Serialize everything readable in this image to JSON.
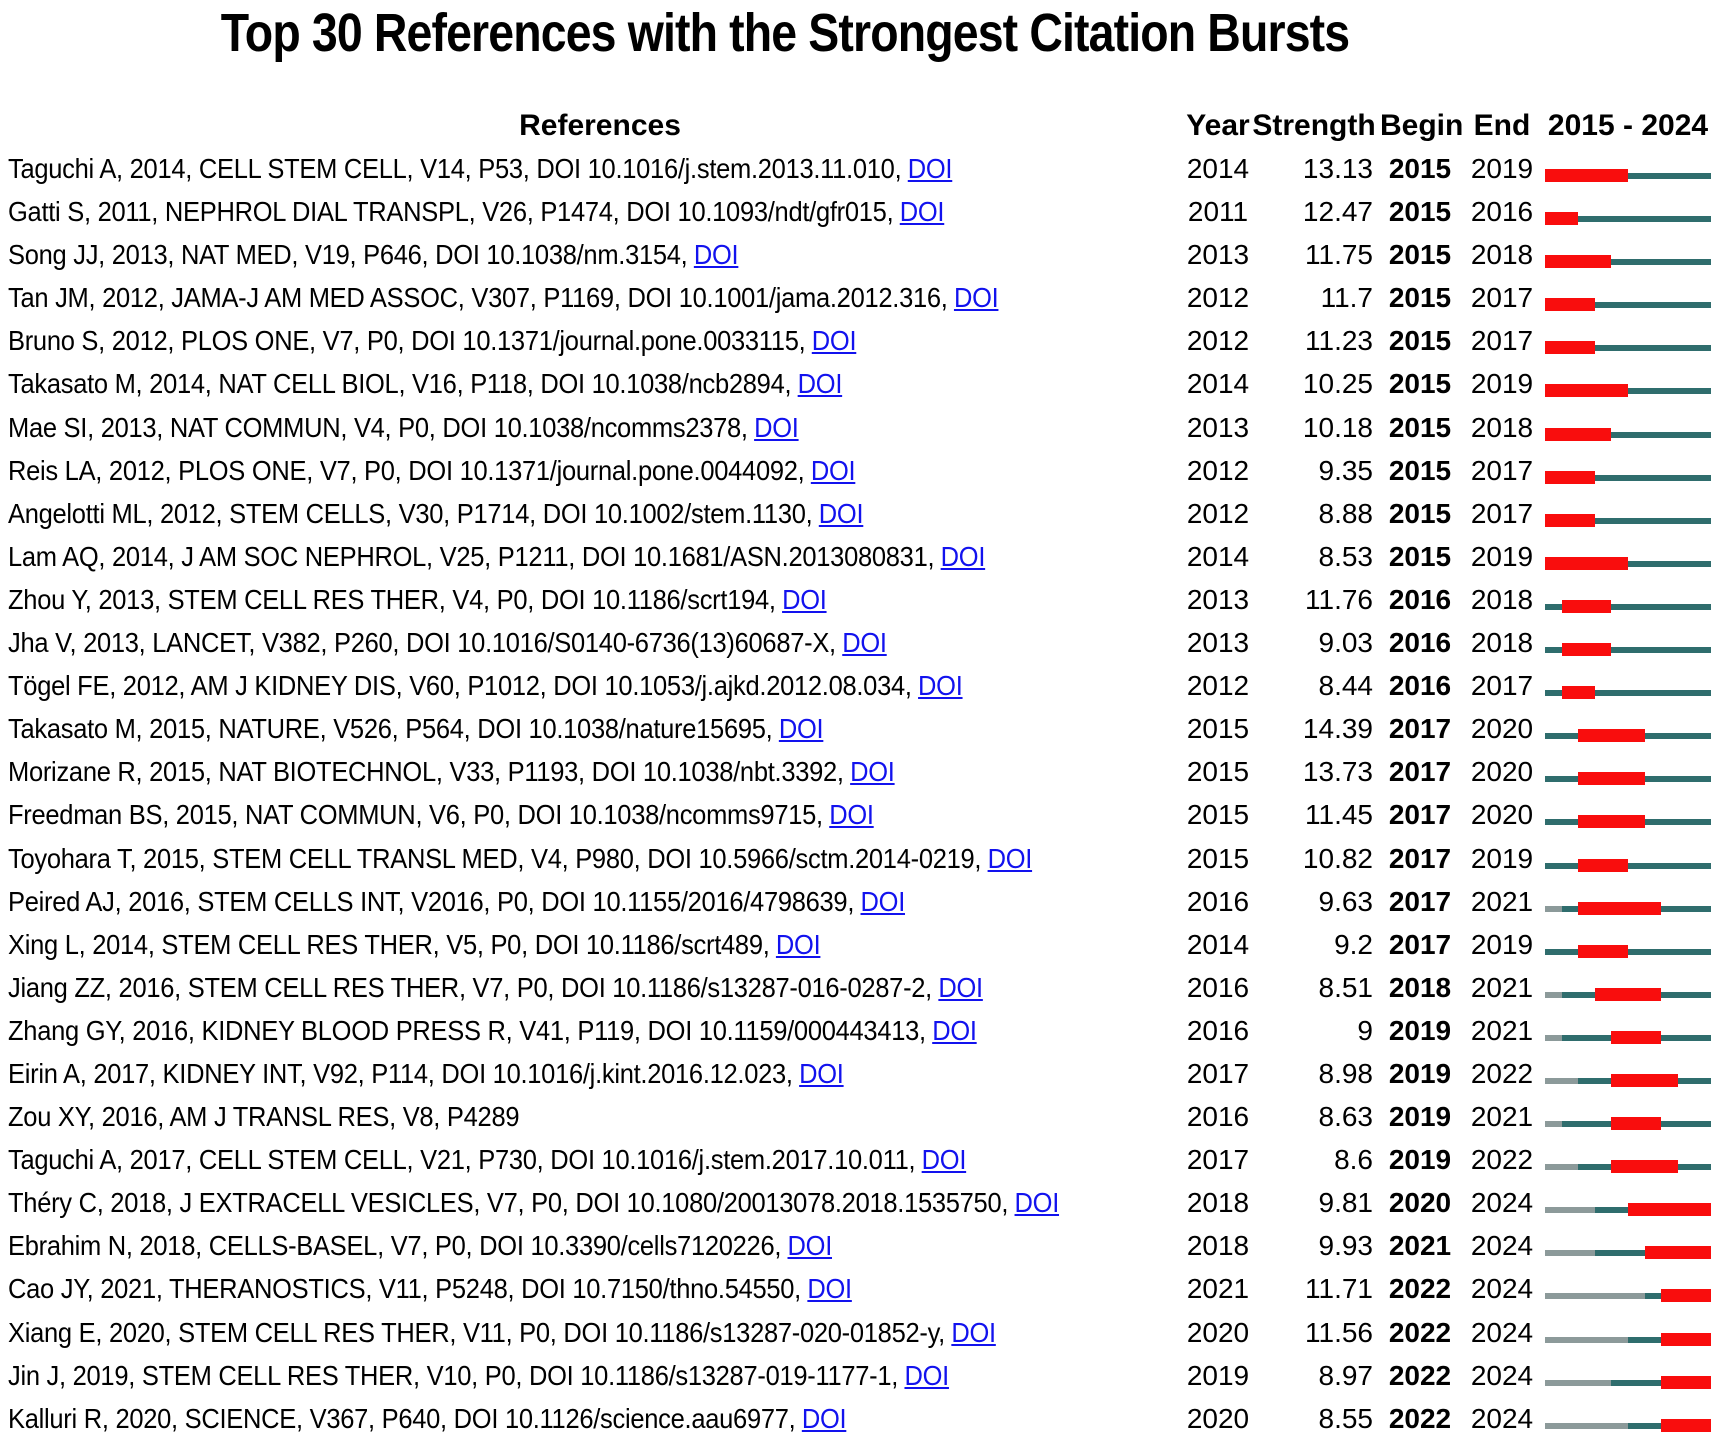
{
  "chart_data": {
    "type": "table",
    "title": "Top 30 References with the Strongest Citation Bursts",
    "headers": {
      "references": "References",
      "year": "Year",
      "strength": "Strength",
      "begin": "Begin",
      "end": "End",
      "timeline": "2015 - 2024"
    },
    "doi_label": "DOI",
    "timeline_start": 2015,
    "timeline_end": 2024,
    "colors": {
      "burst_bar": "#F90D0D",
      "post_publication_line": "#2F6D6D",
      "pre_publication_line": "#8C9A9A",
      "doi_link": "#1212EE",
      "text": "#000000"
    },
    "rows": [
      {
        "reference": "Taguchi A, 2014, CELL STEM CELL, V14, P53, DOI 10.1016/j.stem.2013.11.010,",
        "doi": true,
        "year": 2014,
        "strength": "13.13",
        "begin": 2015,
        "end": 2019
      },
      {
        "reference": "Gatti S, 2011, NEPHROL DIAL TRANSPL, V26, P1474, DOI 10.1093/ndt/gfr015,",
        "doi": true,
        "year": 2011,
        "strength": "12.47",
        "begin": 2015,
        "end": 2016
      },
      {
        "reference": "Song JJ, 2013, NAT MED, V19, P646, DOI 10.1038/nm.3154,",
        "doi": true,
        "year": 2013,
        "strength": "11.75",
        "begin": 2015,
        "end": 2018
      },
      {
        "reference": "Tan JM, 2012, JAMA-J AM MED ASSOC, V307, P1169, DOI 10.1001/jama.2012.316,",
        "doi": true,
        "year": 2012,
        "strength": "11.7",
        "begin": 2015,
        "end": 2017
      },
      {
        "reference": "Bruno S, 2012, PLOS ONE, V7, P0, DOI 10.1371/journal.pone.0033115,",
        "doi": true,
        "year": 2012,
        "strength": "11.23",
        "begin": 2015,
        "end": 2017
      },
      {
        "reference": "Takasato M, 2014, NAT CELL BIOL, V16, P118, DOI 10.1038/ncb2894,",
        "doi": true,
        "year": 2014,
        "strength": "10.25",
        "begin": 2015,
        "end": 2019
      },
      {
        "reference": "Mae SI, 2013, NAT COMMUN, V4, P0, DOI 10.1038/ncomms2378,",
        "doi": true,
        "year": 2013,
        "strength": "10.18",
        "begin": 2015,
        "end": 2018
      },
      {
        "reference": "Reis LA, 2012, PLOS ONE, V7, P0, DOI 10.1371/journal.pone.0044092,",
        "doi": true,
        "year": 2012,
        "strength": "9.35",
        "begin": 2015,
        "end": 2017
      },
      {
        "reference": "Angelotti ML, 2012, STEM CELLS, V30, P1714, DOI 10.1002/stem.1130,",
        "doi": true,
        "year": 2012,
        "strength": "8.88",
        "begin": 2015,
        "end": 2017
      },
      {
        "reference": "Lam AQ, 2014, J AM SOC NEPHROL, V25, P1211, DOI 10.1681/ASN.2013080831,",
        "doi": true,
        "year": 2014,
        "strength": "8.53",
        "begin": 2015,
        "end": 2019
      },
      {
        "reference": "Zhou Y, 2013, STEM CELL RES THER, V4, P0, DOI 10.1186/scrt194,",
        "doi": true,
        "year": 2013,
        "strength": "11.76",
        "begin": 2016,
        "end": 2018
      },
      {
        "reference": "Jha V, 2013, LANCET, V382, P260, DOI 10.1016/S0140-6736(13)60687-X,",
        "doi": true,
        "year": 2013,
        "strength": "9.03",
        "begin": 2016,
        "end": 2018
      },
      {
        "reference": "Tögel FE, 2012, AM J KIDNEY DIS, V60, P1012, DOI 10.1053/j.ajkd.2012.08.034,",
        "doi": true,
        "year": 2012,
        "strength": "8.44",
        "begin": 2016,
        "end": 2017
      },
      {
        "reference": "Takasato M, 2015, NATURE, V526, P564, DOI 10.1038/nature15695,",
        "doi": true,
        "year": 2015,
        "strength": "14.39",
        "begin": 2017,
        "end": 2020
      },
      {
        "reference": "Morizane R, 2015, NAT BIOTECHNOL, V33, P1193, DOI 10.1038/nbt.3392,",
        "doi": true,
        "year": 2015,
        "strength": "13.73",
        "begin": 2017,
        "end": 2020
      },
      {
        "reference": "Freedman BS, 2015, NAT COMMUN, V6, P0, DOI 10.1038/ncomms9715,",
        "doi": true,
        "year": 2015,
        "strength": "11.45",
        "begin": 2017,
        "end": 2020
      },
      {
        "reference": "Toyohara T, 2015, STEM CELL TRANSL MED, V4, P980, DOI 10.5966/sctm.2014-0219,",
        "doi": true,
        "year": 2015,
        "strength": "10.82",
        "begin": 2017,
        "end": 2019
      },
      {
        "reference": "Peired AJ, 2016, STEM CELLS INT, V2016, P0, DOI 10.1155/2016/4798639,",
        "doi": true,
        "year": 2016,
        "strength": "9.63",
        "begin": 2017,
        "end": 2021
      },
      {
        "reference": "Xing L, 2014, STEM CELL RES THER, V5, P0, DOI 10.1186/scrt489,",
        "doi": true,
        "year": 2014,
        "strength": "9.2",
        "begin": 2017,
        "end": 2019
      },
      {
        "reference": "Jiang ZZ, 2016, STEM CELL RES THER, V7, P0, DOI 10.1186/s13287-016-0287-2,",
        "doi": true,
        "year": 2016,
        "strength": "8.51",
        "begin": 2018,
        "end": 2021
      },
      {
        "reference": "Zhang GY, 2016, KIDNEY BLOOD PRESS R, V41, P119, DOI 10.1159/000443413,",
        "doi": true,
        "year": 2016,
        "strength": "9",
        "begin": 2019,
        "end": 2021
      },
      {
        "reference": "Eirin A, 2017, KIDNEY INT, V92, P114, DOI 10.1016/j.kint.2016.12.023,",
        "doi": true,
        "year": 2017,
        "strength": "8.98",
        "begin": 2019,
        "end": 2022
      },
      {
        "reference": "Zou XY, 2016, AM J TRANSL RES, V8, P4289",
        "doi": false,
        "year": 2016,
        "strength": "8.63",
        "begin": 2019,
        "end": 2021
      },
      {
        "reference": "Taguchi A, 2017, CELL STEM CELL, V21, P730, DOI 10.1016/j.stem.2017.10.011,",
        "doi": true,
        "year": 2017,
        "strength": "8.6",
        "begin": 2019,
        "end": 2022
      },
      {
        "reference": "Théry C, 2018, J EXTRACELL VESICLES, V7, P0, DOI 10.1080/20013078.2018.1535750,",
        "doi": true,
        "year": 2018,
        "strength": "9.81",
        "begin": 2020,
        "end": 2024
      },
      {
        "reference": "Ebrahim N, 2018, CELLS-BASEL, V7, P0, DOI 10.3390/cells7120226,",
        "doi": true,
        "year": 2018,
        "strength": "9.93",
        "begin": 2021,
        "end": 2024
      },
      {
        "reference": "Cao JY, 2021, THERANOSTICS, V11, P5248, DOI 10.7150/thno.54550,",
        "doi": true,
        "year": 2021,
        "strength": "11.71",
        "begin": 2022,
        "end": 2024
      },
      {
        "reference": "Xiang E, 2020, STEM CELL RES THER, V11, P0, DOI 10.1186/s13287-020-01852-y,",
        "doi": true,
        "year": 2020,
        "strength": "11.56",
        "begin": 2022,
        "end": 2024
      },
      {
        "reference": "Jin J, 2019, STEM CELL RES THER, V10, P0, DOI 10.1186/s13287-019-1177-1,",
        "doi": true,
        "year": 2019,
        "strength": "8.97",
        "begin": 2022,
        "end": 2024
      },
      {
        "reference": "Kalluri R, 2020, SCIENCE, V367, P640, DOI 10.1126/science.aau6977,",
        "doi": true,
        "year": 2020,
        "strength": "8.55",
        "begin": 2022,
        "end": 2024
      }
    ]
  }
}
